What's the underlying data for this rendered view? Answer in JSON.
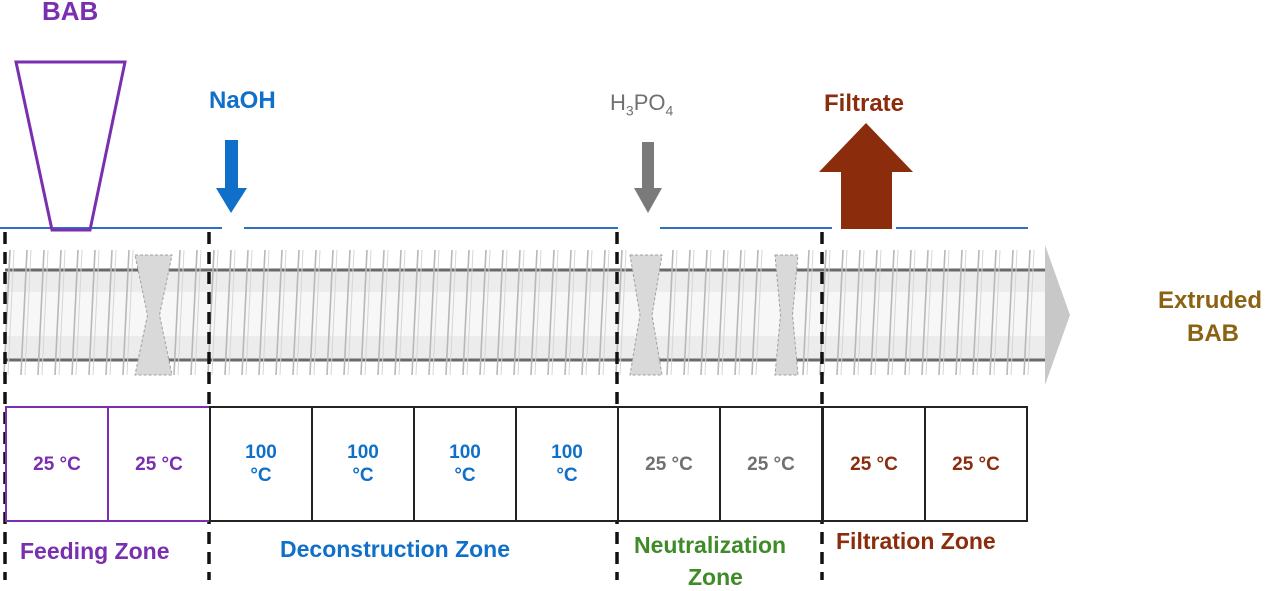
{
  "colors": {
    "feeding": "#7a2fb0",
    "deconstruction": "#1070c9",
    "neutralization": "#3e8b28",
    "filtration": "#8b2c0c",
    "reagent_gray": "#707070",
    "extruded": "#8a6212",
    "line_blue": "#2f6fc2",
    "cell_border": "#222222"
  },
  "labels": {
    "bab_input": "BAB",
    "naoh": "NaOH",
    "h3po4_main": "H",
    "h3po4_sub3": "3",
    "h3po4_po": "PO",
    "h3po4_sub4": "4",
    "filtrate": "Filtrate",
    "extruded_line1": "Extruded",
    "extruded_line2": "BAB"
  },
  "zones": [
    {
      "name": "Feeding Zone",
      "color_key": "feeding"
    },
    {
      "name": "Deconstruction Zone",
      "color_key": "deconstruction"
    },
    {
      "name_line1": "Neutralization",
      "name_line2": "Zone",
      "color_key": "neutralization"
    },
    {
      "name": "Filtration Zone",
      "color_key": "filtration"
    }
  ],
  "temperatures": [
    {
      "text": "25 °C",
      "color_key": "feeding"
    },
    {
      "text": "25 °C",
      "color_key": "feeding"
    },
    {
      "text": "100\n°C",
      "color_key": "deconstruction"
    },
    {
      "text": "100\n°C",
      "color_key": "deconstruction"
    },
    {
      "text": "100\n°C",
      "color_key": "deconstruction"
    },
    {
      "text": "100\n°C",
      "color_key": "deconstruction"
    },
    {
      "text": "25 °C",
      "color_key": "reagent_gray"
    },
    {
      "text": "25 °C",
      "color_key": "reagent_gray"
    },
    {
      "text": "25 °C",
      "color_key": "filtration"
    },
    {
      "text": "25 °C",
      "color_key": "filtration"
    }
  ]
}
